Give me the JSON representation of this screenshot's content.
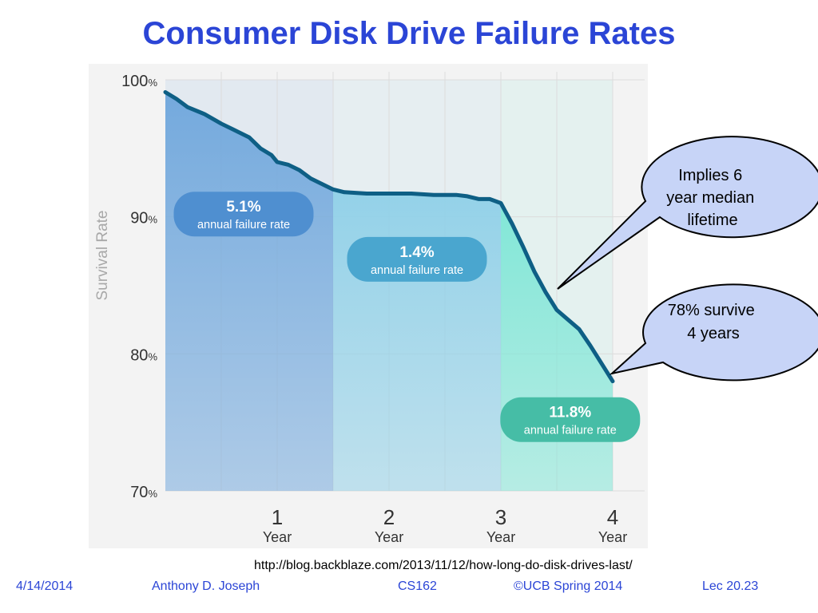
{
  "title": "Consumer Disk Drive Failure Rates",
  "source_url": "http://blog.backblaze.com/2013/11/12/how-long-do-disk-drives-last/",
  "footer": {
    "date": "4/14/2014",
    "author": "Anthony D. Joseph",
    "course": "CS162",
    "copyright": "©UCB Spring 2014",
    "lecture": "Lec 20.23"
  },
  "callouts": [
    {
      "text_lines": [
        "Implies 6",
        "year median",
        "lifetime"
      ]
    },
    {
      "text_lines": [
        "78% survive",
        "4 years"
      ]
    }
  ],
  "colors": {
    "title": "#2b45d6",
    "line": "#0e5f85",
    "phase1": "#6ea6dc",
    "phase2": "#8fd0e8",
    "phase3": "#7de6d6",
    "badge1": "#4f8fd0",
    "badge2": "#4aa6cf",
    "badge3": "#46bda6",
    "callout_fill": "#c7d4f7"
  },
  "chart_data": {
    "type": "area",
    "ylabel": "Survival Rate",
    "xlabel": "",
    "ylim": [
      70,
      100
    ],
    "xlim": [
      0,
      4
    ],
    "y_ticks": [
      {
        "value": 100,
        "num": "100",
        "unit": "%"
      },
      {
        "value": 90,
        "num": "90",
        "unit": "%"
      },
      {
        "value": 80,
        "num": "80",
        "unit": "%"
      },
      {
        "value": 70,
        "num": "70",
        "unit": "%"
      }
    ],
    "x_ticks": [
      {
        "value": 1,
        "num": "1",
        "label": "Year"
      },
      {
        "value": 2,
        "num": "2",
        "label": "Year"
      },
      {
        "value": 3,
        "num": "3",
        "label": "Year"
      },
      {
        "value": 4,
        "num": "4",
        "label": "Year"
      }
    ],
    "grid": true,
    "phases": [
      {
        "start": 0,
        "end": 1.5,
        "rate": "5.1%",
        "label": "annual failure rate",
        "badge_x": 0.7,
        "badge_y": 90.2
      },
      {
        "start": 1.5,
        "end": 3.0,
        "rate": "1.4%",
        "label": "annual failure rate",
        "badge_x": 2.25,
        "badge_y": 86.9
      },
      {
        "start": 3.0,
        "end": 4.0,
        "rate": "11.8%",
        "label": "annual failure rate",
        "badge_x": 3.62,
        "badge_y": 75.2
      }
    ],
    "series": [
      {
        "x": [
          0,
          0.1,
          0.2,
          0.35,
          0.5,
          0.6,
          0.75,
          0.85,
          0.95,
          1.0,
          1.1,
          1.2,
          1.3,
          1.4,
          1.5,
          1.6,
          1.8,
          2.0,
          2.2,
          2.4,
          2.6,
          2.7,
          2.8,
          2.9,
          3.0,
          3.1,
          3.2,
          3.3,
          3.4,
          3.5,
          3.6,
          3.7,
          3.8,
          3.9,
          4.0
        ],
        "y": [
          99.1,
          98.6,
          98.0,
          97.5,
          96.8,
          96.4,
          95.8,
          95.0,
          94.5,
          94.0,
          93.8,
          93.4,
          92.8,
          92.4,
          92.0,
          91.8,
          91.7,
          91.7,
          91.7,
          91.6,
          91.6,
          91.5,
          91.3,
          91.3,
          91.0,
          89.5,
          87.8,
          86.0,
          84.5,
          83.2,
          82.5,
          81.8,
          80.6,
          79.3,
          78.0
        ]
      }
    ]
  }
}
